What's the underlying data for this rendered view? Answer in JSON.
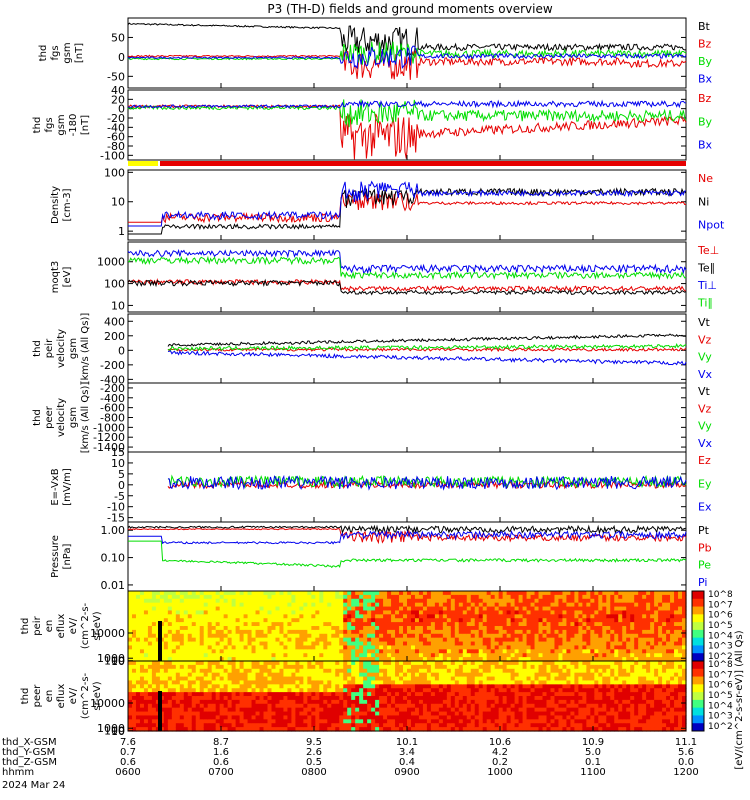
{
  "title": "P3 (TH-D) fields and ground moments overview",
  "date_label": "2024 Mar 24",
  "colors": {
    "black": "#000000",
    "red": "#e60000",
    "green": "#00dd00",
    "blue": "#0000ee",
    "yellow": "#ffff00"
  },
  "x_axis": {
    "ticks": [
      "0600",
      "0700",
      "0800",
      "0900",
      "1000",
      "1100",
      "1200"
    ],
    "rows": [
      {
        "label": "thd_X-GSM",
        "values": [
          "7.6",
          "8.7",
          "9.5",
          "10.1",
          "10.6",
          "10.9",
          "11.1"
        ]
      },
      {
        "label": "thd_Y-GSM",
        "values": [
          "0.7",
          "1.6",
          "2.6",
          "3.4",
          "4.2",
          "5.0",
          "5.6"
        ]
      },
      {
        "label": "thd_Z-GSM",
        "values": [
          "0.6",
          "0.6",
          "0.5",
          "0.4",
          "0.2",
          "0.1",
          "0.0"
        ]
      },
      {
        "label": "hhmm",
        "values": [
          "0600",
          "0700",
          "0800",
          "0900",
          "1000",
          "1100",
          "1200"
        ]
      }
    ]
  },
  "chart_data": [
    {
      "type": "line",
      "panel": "fgs_gsm",
      "ylabel": [
        "thd",
        "fgs",
        "gsm",
        "[nT]"
      ],
      "yticks": [
        "50",
        "0",
        "-50"
      ],
      "ylim": [
        -80,
        100
      ],
      "series": [
        {
          "name": "Bt",
          "color": "black"
        },
        {
          "name": "Bz",
          "color": "red"
        },
        {
          "name": "By",
          "color": "green"
        },
        {
          "name": "Bx",
          "color": "blue"
        }
      ]
    },
    {
      "type": "line",
      "panel": "fgs_gsm_zoom",
      "ylabel": [
        "thd",
        "fgs",
        "gsm",
        "-180",
        "[nT]"
      ],
      "yticks": [
        "40",
        "20",
        "0",
        "-20",
        "-40",
        "-60",
        "-80",
        "-100"
      ],
      "ylim": [
        -110,
        40
      ],
      "series": [
        {
          "name": "Bz",
          "color": "red"
        },
        {
          "name": "By",
          "color": "green"
        },
        {
          "name": "Bx",
          "color": "blue"
        }
      ]
    },
    {
      "type": "line",
      "panel": "density",
      "ylabel": [
        "Density",
        "[cm-3]"
      ],
      "log": true,
      "yticks": [
        "100",
        "10",
        "1"
      ],
      "ylim": [
        0.5,
        120
      ],
      "series": [
        {
          "name": "Ne",
          "color": "red"
        },
        {
          "name": "Ni",
          "color": "black"
        },
        {
          "name": "Npot",
          "color": "blue"
        }
      ]
    },
    {
      "type": "line",
      "panel": "temperature",
      "ylabel": [
        "moqt3",
        "[eV]"
      ],
      "log": true,
      "yticks": [
        "1000",
        "100",
        "10"
      ],
      "ylim": [
        5,
        8000
      ],
      "series": [
        {
          "name": "Te⊥",
          "color": "red"
        },
        {
          "name": "Te∥",
          "color": "black"
        },
        {
          "name": "Ti⊥",
          "color": "blue"
        },
        {
          "name": "Ti∥",
          "color": "green"
        }
      ]
    },
    {
      "type": "line",
      "panel": "peir_velocity",
      "ylabel": [
        "thd",
        "peir",
        "velocity",
        "gsm",
        "[km/s (All Qs)]"
      ],
      "yticks": [
        "400",
        "200",
        "0",
        "-200",
        "-400"
      ],
      "ylim": [
        -450,
        500
      ],
      "series": [
        {
          "name": "Vt",
          "color": "black"
        },
        {
          "name": "Vz",
          "color": "red"
        },
        {
          "name": "Vy",
          "color": "green"
        },
        {
          "name": "Vx",
          "color": "blue"
        }
      ]
    },
    {
      "type": "line",
      "panel": "peer_velocity",
      "ylabel": [
        "thd",
        "peer",
        "velocity",
        "gsm",
        "[km/s (All Qs)]"
      ],
      "yticks": [
        "-200",
        "-400",
        "-600",
        "-800",
        "-1000",
        "-1200",
        "-1400"
      ],
      "ylim": [
        -1500,
        -100
      ],
      "series": [
        {
          "name": "Vt",
          "color": "black"
        },
        {
          "name": "Vz",
          "color": "red"
        },
        {
          "name": "Vy",
          "color": "green"
        },
        {
          "name": "Vx",
          "color": "blue"
        }
      ]
    },
    {
      "type": "line",
      "panel": "efield",
      "ylabel": [
        "E=-VxB",
        "[mV/m]"
      ],
      "yticks": [
        "15",
        "10",
        "5",
        "0",
        "-5",
        "-10",
        "-15"
      ],
      "ylim": [
        -17,
        15
      ],
      "series": [
        {
          "name": "Ez",
          "color": "red"
        },
        {
          "name": "Ey",
          "color": "green"
        },
        {
          "name": "Ex",
          "color": "blue"
        }
      ]
    },
    {
      "type": "line",
      "panel": "pressure",
      "ylabel": [
        "Pressure",
        "[nPa]"
      ],
      "log": true,
      "yticks": [
        "1.00",
        "0.10",
        "0.01"
      ],
      "ylim": [
        0.006,
        2
      ],
      "series": [
        {
          "name": "Pt",
          "color": "black"
        },
        {
          "name": "Pb",
          "color": "red"
        },
        {
          "name": "Pe",
          "color": "green"
        },
        {
          "name": "Pi",
          "color": "blue"
        }
      ]
    },
    {
      "type": "heatmap",
      "panel": "peir_eflux",
      "ylabel": [
        "thd",
        "peir",
        "en",
        "eflux",
        "eV/",
        "(cm^2-s-",
        "sr-eV)"
      ],
      "yticks": [
        "10000",
        "1000",
        "100",
        "10"
      ],
      "ylim": [
        5,
        25000
      ],
      "colorbar_ticks": [
        "10^8",
        "10^7",
        "10^6",
        "10^5",
        "10^4",
        "10^3",
        "10^2"
      ]
    },
    {
      "type": "heatmap",
      "panel": "peer_eflux",
      "ylabel": [
        "thd",
        "peer",
        "en",
        "eflux",
        "eV/",
        "(cm^2-s-",
        "sr-eV)"
      ],
      "yticks": [
        "10000",
        "1000",
        "100",
        "10"
      ],
      "ylim": [
        5,
        25000
      ],
      "colorbar_ticks": [
        "10^8",
        "10^7",
        "10^6",
        "10^5",
        "10^4",
        "10^3",
        "10^2"
      ],
      "colorbar_label": "[eV/(cm^2-s-sr-eV)] (All Qs)"
    }
  ]
}
